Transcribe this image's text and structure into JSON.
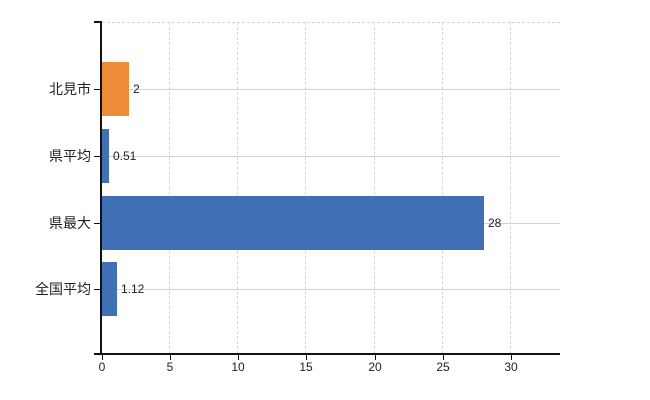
{
  "chart": {
    "title": "",
    "background_color": "#ffffff"
  },
  "chart_data": {
    "type": "bar",
    "orientation": "horizontal",
    "title": "",
    "xlabel": "",
    "ylabel": "",
    "categories": [
      "北見市",
      "県平均",
      "県最大",
      "全国平均"
    ],
    "values": [
      2,
      0.51,
      28,
      1.12
    ],
    "value_labels": [
      "2",
      "0.51",
      "28",
      "1.12"
    ],
    "series_colors": [
      "#ED8B36",
      "#4070B4",
      "#4070B4",
      "#4070B4"
    ],
    "highlight_color": "#ED8B36",
    "default_bar_color": "#4070B4",
    "x_ticks": [
      0,
      5,
      10,
      15,
      20,
      25,
      30
    ],
    "x_tick_labels": [
      "0",
      "5",
      "10",
      "15",
      "20",
      "25",
      "30"
    ],
    "xlim": [
      0,
      33.6
    ],
    "grid": true,
    "legend": "none",
    "gridline_color_vertical": "#d6d6d6",
    "gridline_color_horizontal": "#cdd5cd",
    "axis_color": "#111111",
    "text_color": "#222222"
  }
}
